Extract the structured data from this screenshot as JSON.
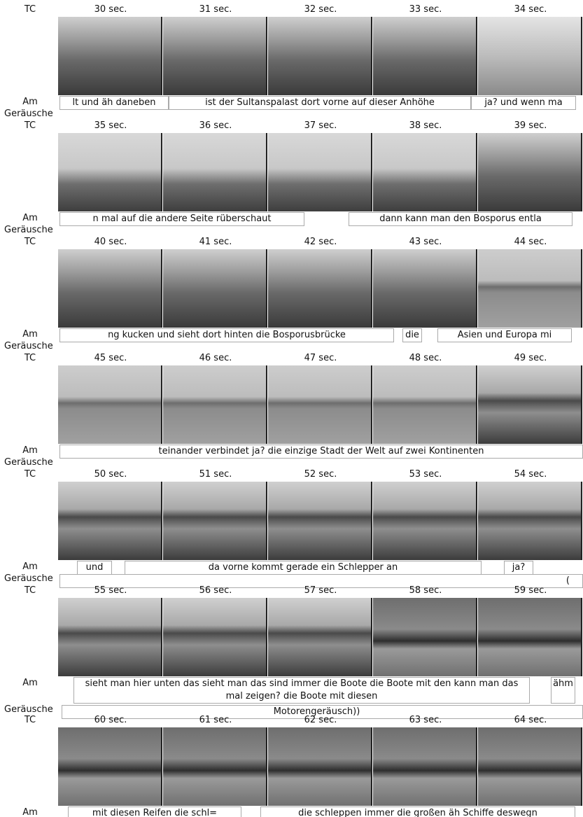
{
  "labels": {
    "tc": "TC",
    "am": "Am",
    "noise": "Geräusche"
  },
  "rows": [
    {
      "times": [
        "30 sec.",
        "31 sec.",
        "32 sec.",
        "33 sec.",
        "34 sec."
      ],
      "am": [
        "lt und äh daneben",
        "ist der Sultanspalast dort vorne auf dieser Anhöhe",
        "ja? und wenn ma"
      ],
      "noise": []
    },
    {
      "times": [
        "35 sec.",
        "36 sec.",
        "37 sec.",
        "38 sec.",
        "39 sec."
      ],
      "am": [
        "n mal auf die andere Seite rüberschaut",
        "dann kann man den Bosporus entla"
      ],
      "noise": []
    },
    {
      "times": [
        "40 sec.",
        "41 sec.",
        "42 sec.",
        "43 sec.",
        "44 sec."
      ],
      "am": [
        "ng kucken und sieht dort hinten die Bosporusbrücke",
        "die",
        "Asien und Europa mi"
      ],
      "noise": []
    },
    {
      "times": [
        "45 sec.",
        "46 sec.",
        "47 sec.",
        "48 sec.",
        "49 sec."
      ],
      "am": [
        "teinander verbindet ja? die einzige Stadt der Welt auf zwei Kontinenten"
      ],
      "noise": []
    },
    {
      "times": [
        "50 sec.",
        "51 sec.",
        "52 sec.",
        "53 sec.",
        "54 sec."
      ],
      "am": [
        "und",
        "da vorne kommt gerade ein Schlepper an",
        "ja?"
      ],
      "noise": [
        "("
      ]
    },
    {
      "times": [
        "55 sec.",
        "56 sec.",
        "57 sec.",
        "58 sec.",
        "59 sec."
      ],
      "am": [
        "sieht man hier unten das sieht man das sind immer die Boote die Boote mit den kann man das mal zeigen? die Boote mit diesen",
        "ähm"
      ],
      "noise": [
        "Motorengeräusch))"
      ]
    },
    {
      "times": [
        "60 sec.",
        "61 sec.",
        "62 sec.",
        "63 sec.",
        "64 sec."
      ],
      "am": [
        "mit diesen Reifen die schl=",
        "die schleppen immer die großen äh Schiffe deswegn"
      ],
      "noise": []
    }
  ]
}
